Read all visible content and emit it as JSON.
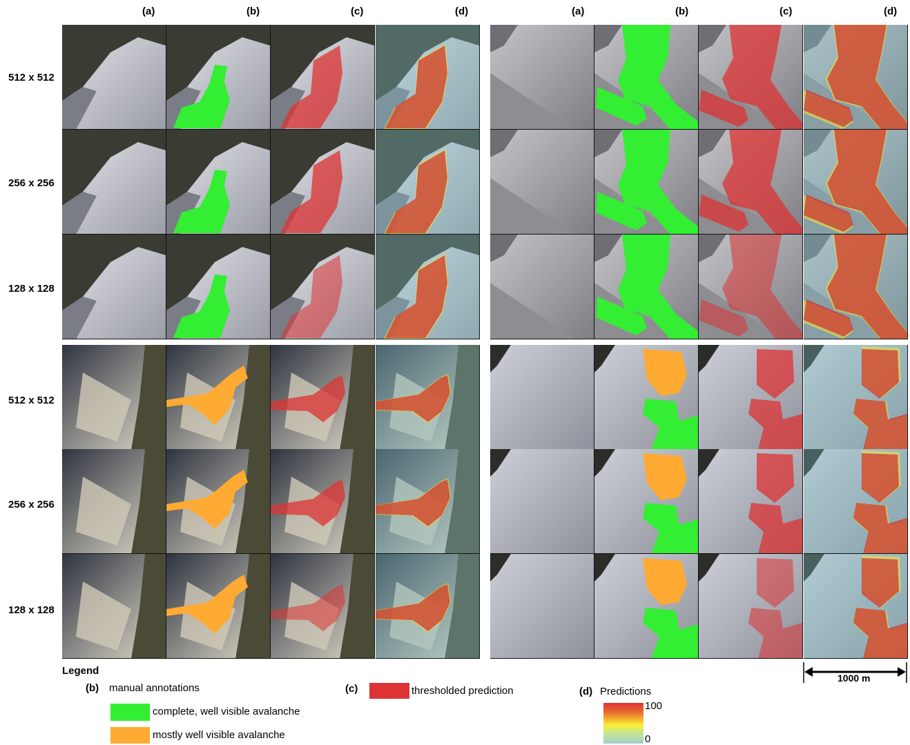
{
  "columns": [
    "(a)",
    "(b)",
    "(c)",
    "(d)"
  ],
  "rows": [
    "512 x 512",
    "256 x 256",
    "128 x 128"
  ],
  "legend": {
    "title": "Legend",
    "b_key": "(b)",
    "b_title": "manual annotations",
    "complete": "complete, well visible avalanche",
    "mostly": "mostly well visible avalanche",
    "c_key": "(c)",
    "c_title": "thresholded prediction",
    "d_key": "(d)",
    "d_title": "Predictions",
    "d_max": "100",
    "d_min": "0"
  },
  "scale_bar": "1000 m",
  "colors": {
    "complete": "#33ee33",
    "mostly": "#ffaa33",
    "threshold": "#dd3333"
  }
}
